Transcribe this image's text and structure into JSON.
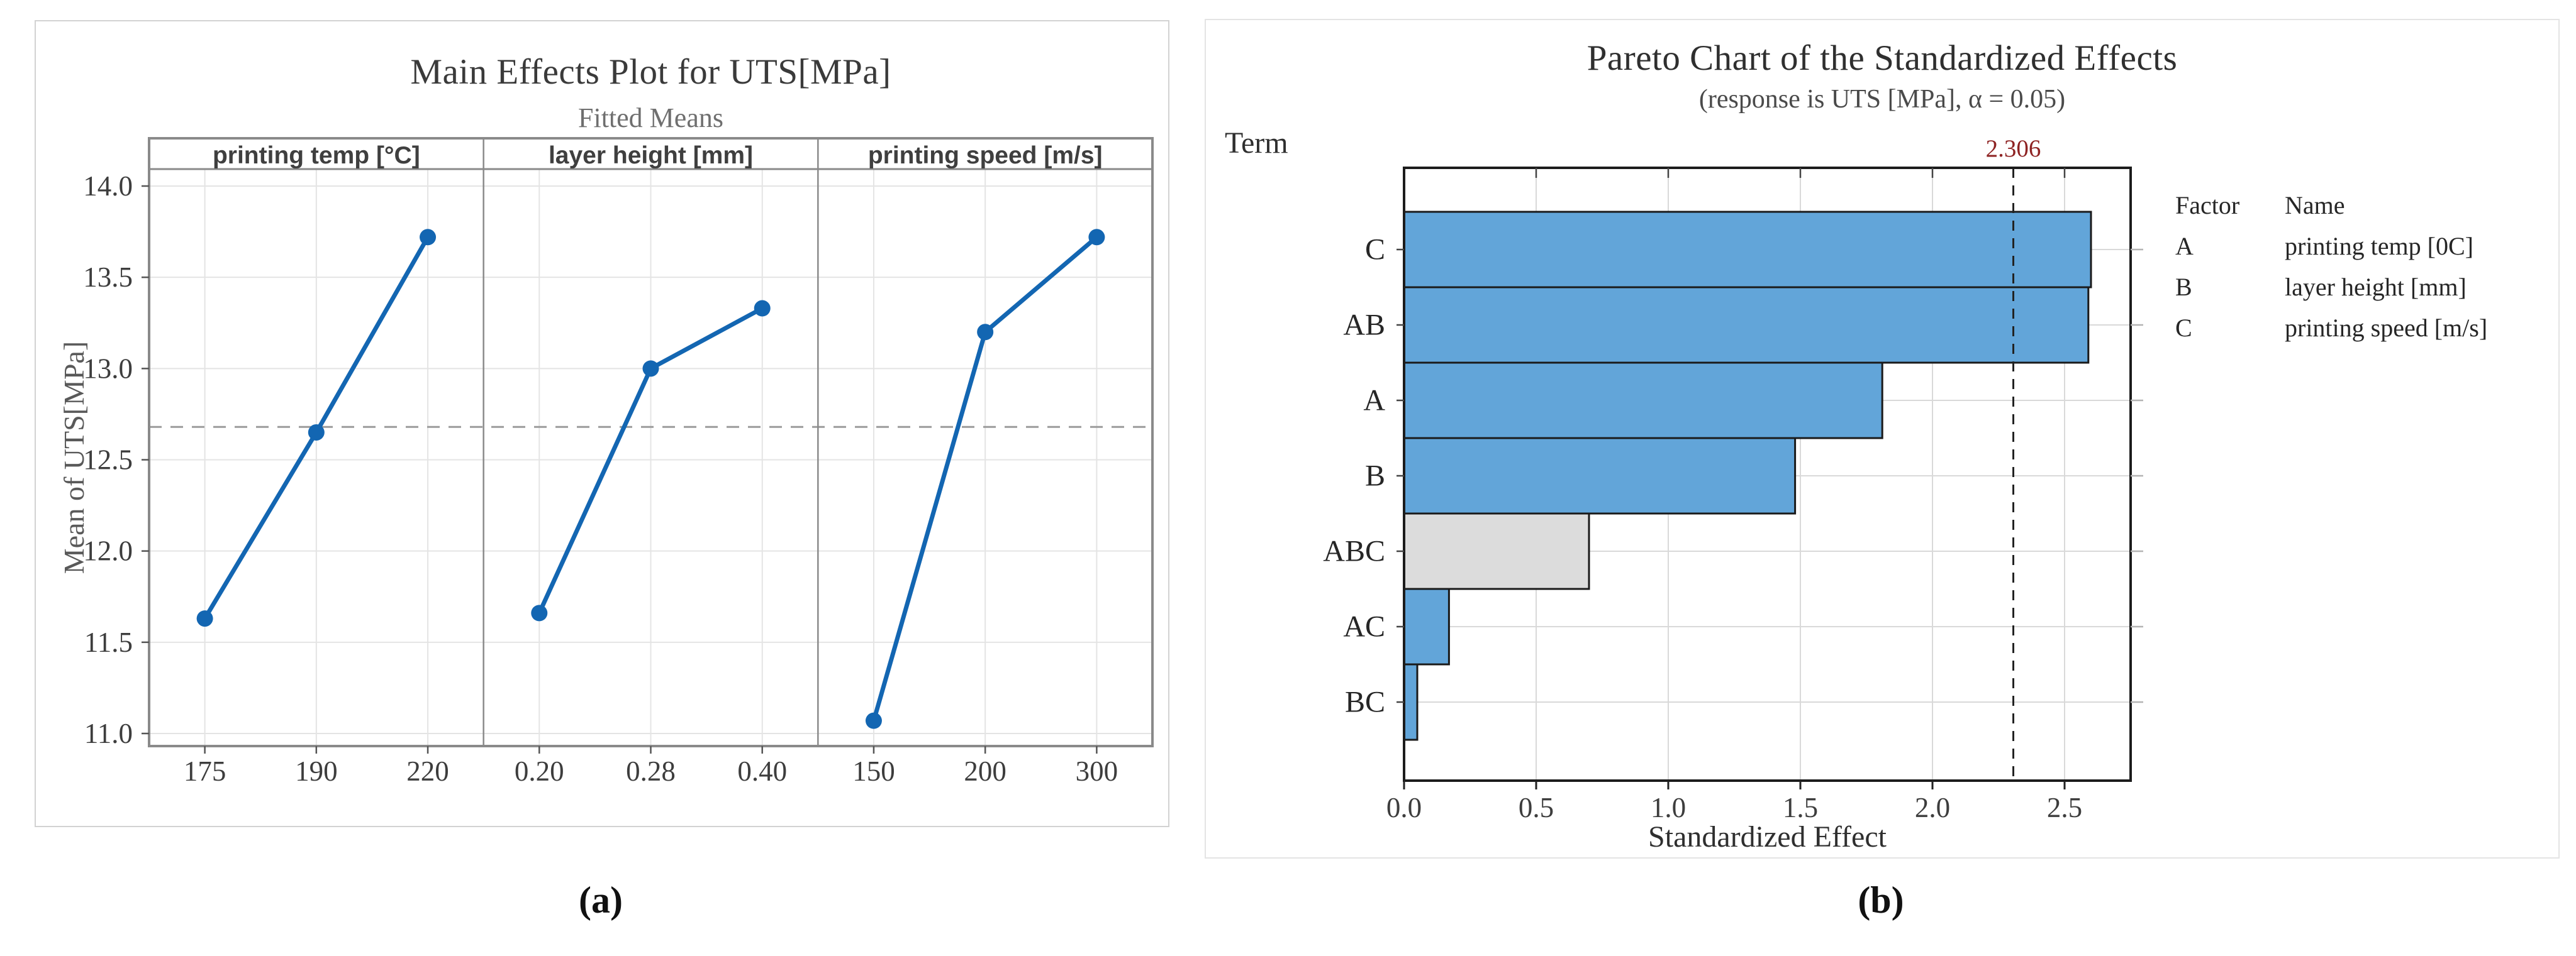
{
  "page": {
    "caption_a": "(a)",
    "caption_b": "(b)"
  },
  "chart_data": [
    {
      "type": "line",
      "title": "Main Effects Plot for UTS[MPa]",
      "subtitle": "Fitted Means",
      "ylabel": "Mean of UTS[MPa]",
      "yticks": [
        14.0,
        13.5,
        13.0,
        12.5,
        12.0,
        11.5,
        11.0
      ],
      "ylim": [
        10.93,
        14.08
      ],
      "grand_mean_line": 12.68,
      "grid": true,
      "panels": [
        {
          "label": "printing temp [°C]",
          "x": [
            "175",
            "190",
            "220"
          ],
          "values": [
            11.63,
            12.65,
            13.72
          ]
        },
        {
          "label": "layer height [mm]",
          "x": [
            "0.20",
            "0.28",
            "0.40"
          ],
          "values": [
            11.66,
            13.0,
            13.33
          ]
        },
        {
          "label": "printing speed [m/s]",
          "x": [
            "150",
            "200",
            "300"
          ],
          "values": [
            11.07,
            13.2,
            13.72
          ]
        }
      ],
      "line_color": "#1366b2",
      "mean_line_color": "#9b9b9b",
      "gridline_color": "#e4e4e4",
      "panel_border_color": "#8a8a8a"
    },
    {
      "type": "bar",
      "orientation": "horizontal",
      "title": "Pareto Chart of the Standardized Effects",
      "subtitle": "(response is UTS [MPa], α = 0.05)",
      "term_label": "Term",
      "xlabel": "Standardized Effect",
      "categories": [
        "C",
        "AB",
        "A",
        "B",
        "ABC",
        "AC",
        "BC"
      ],
      "values": [
        2.6,
        2.59,
        1.81,
        1.48,
        0.7,
        0.17,
        0.05
      ],
      "xticks": [
        0.0,
        0.5,
        1.0,
        1.5,
        2.0,
        2.5
      ],
      "xlim": [
        0,
        2.75
      ],
      "reference_line": 2.306,
      "reference_label": "2.306",
      "reference_label_color": "#8e2323",
      "bar_color": "#62a5d9",
      "nonsignificant_terms": [
        "ABC"
      ],
      "nonsignificant_bar_color": "#dcdcdc",
      "bar_border_color": "#1a1a1a",
      "gridline_color": "#d9d9d9",
      "grid": true,
      "legend": {
        "factor_header": "Factor",
        "name_header": "Name",
        "rows": [
          {
            "factor": "A",
            "name": "printing temp [0C]"
          },
          {
            "factor": "B",
            "name": "layer height [mm]"
          },
          {
            "factor": "C",
            "name": "printing speed [m/s]"
          }
        ]
      }
    }
  ]
}
